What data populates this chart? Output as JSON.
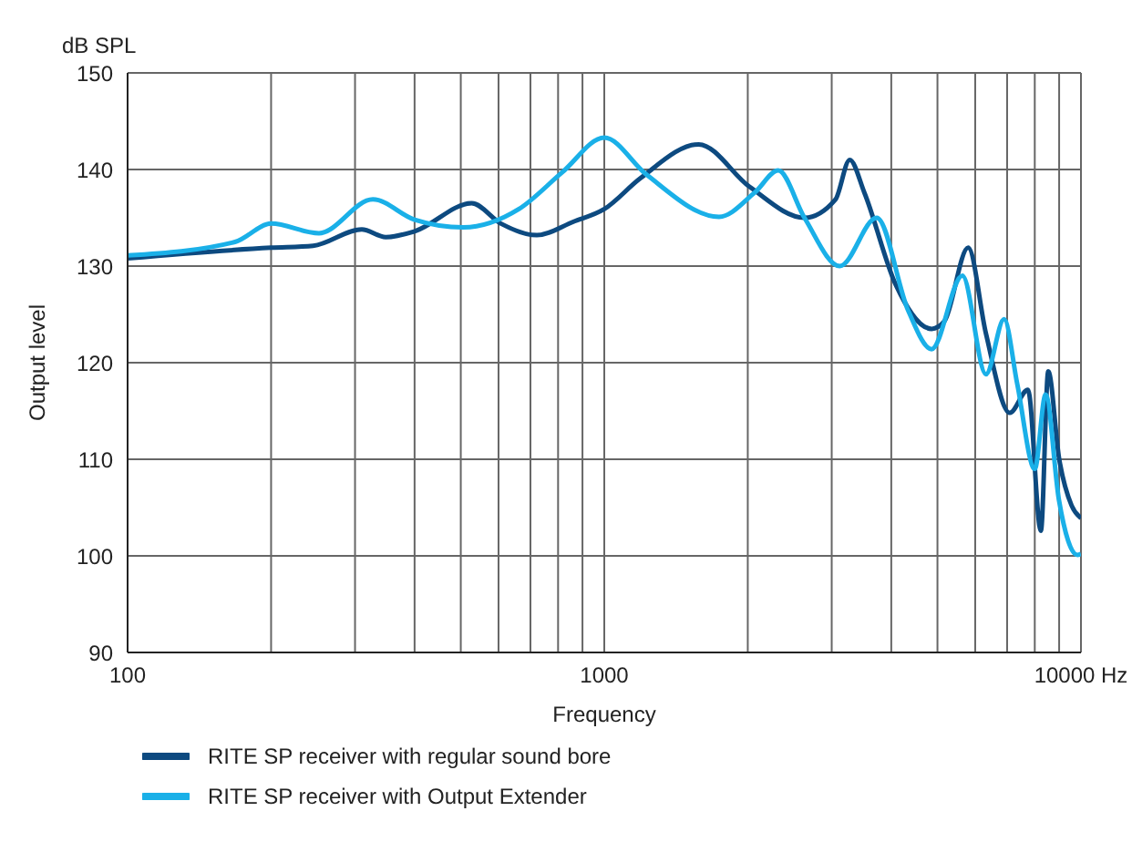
{
  "chart_data": {
    "type": "line",
    "xlabel": "Frequency",
    "ylabel": "Output level",
    "annotations": [
      "dB SPL"
    ],
    "log": "x",
    "grid": true,
    "legend": "bottom",
    "marker": "none",
    "line_style": "solid",
    "xlim": [
      100,
      10000
    ],
    "xticks": [
      100,
      {
        "value": 200,
        "label": null
      },
      {
        "value": 300,
        "label": null
      },
      {
        "value": 400,
        "label": null
      },
      {
        "value": 500,
        "label": null
      },
      {
        "value": 600,
        "label": null
      },
      {
        "value": 700,
        "label": null
      },
      {
        "value": 800,
        "label": null
      },
      {
        "value": 900,
        "label": null
      },
      1000,
      {
        "value": 2000,
        "label": null
      },
      {
        "value": 3000,
        "label": null
      },
      {
        "value": 4000,
        "label": null
      },
      {
        "value": 5000,
        "label": null
      },
      {
        "value": 6000,
        "label": null
      },
      {
        "value": 7000,
        "label": null
      },
      {
        "value": 8000,
        "label": null
      },
      {
        "value": 9000,
        "label": null
      },
      {
        "value": 10000,
        "label": "10000 Hz"
      }
    ],
    "ylim": [
      90,
      150
    ],
    "yticks": [
      90,
      100,
      110,
      120,
      130,
      140,
      150
    ],
    "series": [
      {
        "name": "RITE SP receiver with regular sound bore",
        "color": "#0d4a80",
        "x": [
          100,
          200,
          245,
          310,
          348,
          400,
          527,
          607,
          722,
          862,
          1000,
          1191,
          1578,
          2018,
          2630,
          3055,
          3273,
          3513,
          4085,
          4862,
          5172,
          5800,
          6320,
          7090,
          7740,
          8240,
          8540,
          8990,
          9560,
          10000
        ],
        "values": [
          130.8,
          131.9,
          132.1,
          133.8,
          133.0,
          133.6,
          136.5,
          134.4,
          133.2,
          134.6,
          135.9,
          139.1,
          142.6,
          138.2,
          135.0,
          136.9,
          141.0,
          137.6,
          128.1,
          123.5,
          124.3,
          131.9,
          123.0,
          114.8,
          117.2,
          102.6,
          119.1,
          110.2,
          105.2,
          103.9
        ]
      },
      {
        "name": "RITE SP receiver with Output Extender",
        "color": "#1ab0e8",
        "x": [
          100,
          168,
          200,
          252,
          327,
          400,
          506,
          662,
          816,
          1000,
          1224,
          1741,
          2067,
          2318,
          2630,
          3120,
          3730,
          4340,
          4860,
          5640,
          6320,
          6900,
          7350,
          8000,
          8430,
          8990,
          9830,
          10000
        ],
        "values": [
          131.1,
          132.5,
          134.4,
          133.4,
          136.9,
          134.8,
          134.0,
          135.9,
          139.7,
          143.3,
          139.5,
          135.1,
          137.6,
          139.9,
          135.0,
          130.0,
          135.0,
          125.4,
          121.4,
          129.0,
          118.8,
          124.5,
          117.8,
          109.0,
          116.7,
          105.8,
          100.1,
          100.2
        ]
      }
    ]
  }
}
